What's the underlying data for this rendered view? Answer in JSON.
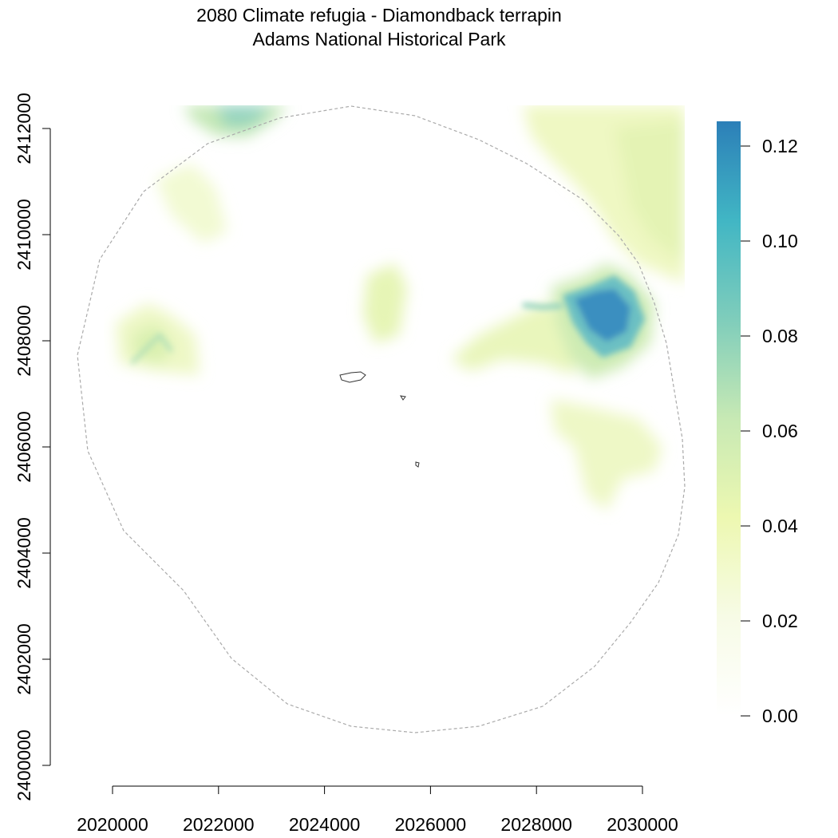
{
  "title": {
    "line1": "2080 Climate refugia - Diamondback terrapin",
    "line2": "Adams National Historical Park"
  },
  "map": {
    "x_axis": {
      "range": [
        2019000,
        2030800
      ],
      "ticks": [
        {
          "value": 2020000,
          "label": "2020000"
        },
        {
          "value": 2022000,
          "label": "2022000"
        },
        {
          "value": 2024000,
          "label": "2024000"
        },
        {
          "value": 2026000,
          "label": "2026000"
        },
        {
          "value": 2028000,
          "label": "2028000"
        },
        {
          "value": 2030000,
          "label": "2030000"
        }
      ]
    },
    "y_axis": {
      "range": [
        2400000,
        2412400
      ],
      "ticks": [
        {
          "value": 2400000,
          "label": "2400000"
        },
        {
          "value": 2402000,
          "label": "2402000"
        },
        {
          "value": 2404000,
          "label": "2404000"
        },
        {
          "value": 2406000,
          "label": "2406000"
        },
        {
          "value": 2408000,
          "label": "2408000"
        },
        {
          "value": 2410000,
          "label": "2410000"
        },
        {
          "value": 2412000,
          "label": "2412000"
        }
      ]
    },
    "buffer_boundary": "dashed grey",
    "park_units": 3
  },
  "legend": {
    "min": 0,
    "max": 0.125,
    "ticks": [
      "0.00",
      "0.02",
      "0.04",
      "0.06",
      "0.08",
      "0.10",
      "0.12"
    ],
    "colors": [
      "#ffffff",
      "#f7fbe6",
      "#edf8b1",
      "#c7e9b4",
      "#7fcdbb",
      "#41b6c4",
      "#2c7fb8"
    ]
  },
  "chart_data": {
    "type": "heatmap",
    "title": "2080 Climate refugia - Diamondback terrapin\nAdams National Historical Park",
    "xlim": [
      2019000,
      2030800
    ],
    "ylim": [
      2400000,
      2412400
    ],
    "value_range": [
      0,
      0.125
    ],
    "hotspots": [
      {
        "x": 2029200,
        "y": 2408500,
        "value": 0.12
      },
      {
        "x": 2022800,
        "y": 2412100,
        "value": 0.06
      },
      {
        "x": 2029800,
        "y": 2411200,
        "value": 0.035
      },
      {
        "x": 2030600,
        "y": 2410500,
        "value": 0.04
      },
      {
        "x": 2021500,
        "y": 2408100,
        "value": 0.05
      },
      {
        "x": 2025200,
        "y": 2408600,
        "value": 0.03
      },
      {
        "x": 2027100,
        "y": 2407900,
        "value": 0.03
      },
      {
        "x": 2029000,
        "y": 2406000,
        "value": 0.025
      }
    ]
  }
}
